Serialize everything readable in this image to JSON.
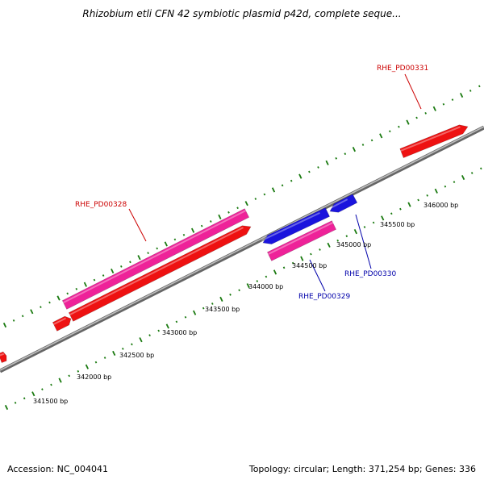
{
  "title": "Rhizobium etli CFN 42 symbiotic plasmid p42d, complete seque...",
  "footer": {
    "accession": "Accession: NC_004041",
    "summary": "Topology: circular; Length: 371,254 bp; Genes: 336"
  },
  "colors": {
    "forward_cds": "#ee1111",
    "forward_gene": "#ee2299",
    "reverse_cds": "#1a14dd",
    "reverse_gene": "#ee2299",
    "tick": "#1a7a10",
    "backbone": "#888888",
    "forward_label": "#cc0000",
    "reverse_label": "#0000aa"
  },
  "scale": {
    "ticks_bp": [
      "341500 bp",
      "342000 bp",
      "342500 bp",
      "343000 bp",
      "343500 bp",
      "344000 bp",
      "344500 bp",
      "345000 bp",
      "345500 bp",
      "346000 bp"
    ]
  },
  "genes": [
    {
      "id": "RHE_PD00328",
      "strand": "forward"
    },
    {
      "id": "RHE_PD00329",
      "strand": "reverse"
    },
    {
      "id": "RHE_PD00330",
      "strand": "reverse"
    },
    {
      "id": "RHE_PD00331",
      "strand": "forward"
    }
  ]
}
